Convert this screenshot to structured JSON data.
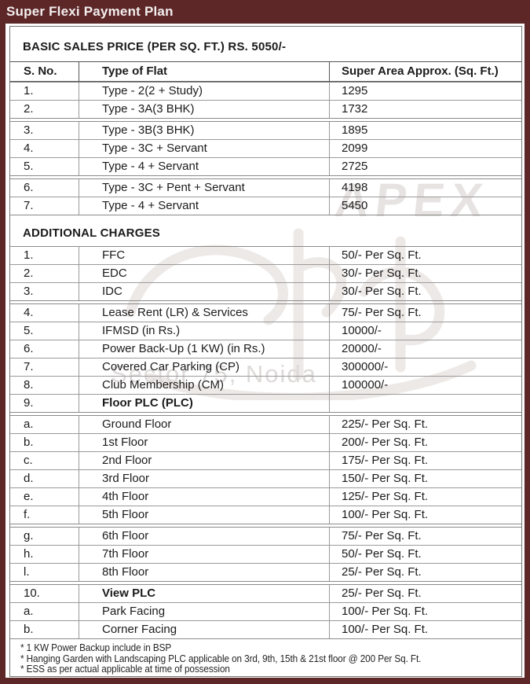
{
  "header": {
    "title": "Super Flexi Payment Plan"
  },
  "basic_sales_heading": "BASIC SALES PRICE (PER SQ. FT.) RS. 5050/-",
  "flats_table": {
    "headers": {
      "sno": "S. No.",
      "type": "Type of Flat",
      "area": "Super Area Approx. (Sq. Ft.)"
    },
    "groups": [
      [
        {
          "sno": "1.",
          "label": "Type - 2(2 + Study)",
          "value": "1295"
        },
        {
          "sno": "2.",
          "label": "Type - 3A(3 BHK)",
          "value": "1732"
        }
      ],
      [
        {
          "sno": "3.",
          "label": "Type - 3B(3 BHK)",
          "value": "1895"
        },
        {
          "sno": "4.",
          "label": "Type - 3C + Servant",
          "value": "2099"
        },
        {
          "sno": "5.",
          "label": "Type - 4 + Servant",
          "value": "2725"
        }
      ],
      [
        {
          "sno": "6.",
          "label": "Type - 3C + Pent + Servant",
          "value": "4198"
        },
        {
          "sno": "7.",
          "label": "Type - 4 + Servant",
          "value": "5450"
        }
      ]
    ]
  },
  "additional_charges": {
    "heading": "ADDITIONAL CHARGES",
    "groups": [
      [
        {
          "sno": "1.",
          "label": "FFC",
          "value": "50/- Per Sq. Ft."
        },
        {
          "sno": "2.",
          "label": "EDC",
          "value": "30/- Per Sq. Ft."
        },
        {
          "sno": "3.",
          "label": "IDC",
          "value": "30/- Per Sq. Ft."
        }
      ],
      [
        {
          "sno": "4.",
          "label": "Lease Rent (LR) & Services",
          "value": "75/- Per Sq. Ft."
        },
        {
          "sno": "5.",
          "label": "IFMSD (in Rs.)",
          "value": "10000/-"
        },
        {
          "sno": "6.",
          "label": "Power Back-Up (1 KW) (in Rs.)",
          "value": "20000/-"
        },
        {
          "sno": "7.",
          "label": "Covered Car Parking (CP)",
          "value": "300000/-"
        },
        {
          "sno": "8.",
          "label": "Club Membership (CM)",
          "value": "100000/-"
        },
        {
          "sno": "9.",
          "label": "Floor PLC (PLC)",
          "value": "",
          "bold": true
        }
      ],
      [
        {
          "sno": "a.",
          "label": "Ground Floor",
          "value": "225/- Per Sq. Ft."
        },
        {
          "sno": "b.",
          "label": "1st Floor",
          "value": "200/- Per Sq. Ft."
        },
        {
          "sno": "c.",
          "label": "2nd Floor",
          "value": "175/- Per Sq. Ft."
        },
        {
          "sno": "d.",
          "label": "3rd Floor",
          "value": "150/- Per Sq. Ft."
        },
        {
          "sno": "e.",
          "label": "4th Floor",
          "value": "125/- Per Sq. Ft."
        },
        {
          "sno": "f.",
          "label": "5th Floor",
          "value": "100/- Per Sq. Ft."
        }
      ],
      [
        {
          "sno": "g.",
          "label": "6th Floor",
          "value": "75/- Per Sq. Ft."
        },
        {
          "sno": "h.",
          "label": "7th Floor",
          "value": "50/- Per Sq. Ft."
        },
        {
          "sno": "l.",
          "label": "8th Floor",
          "value": "25/- Per Sq. Ft."
        }
      ],
      [
        {
          "sno": "10.",
          "label": "View PLC",
          "value": "25/- Per Sq. Ft.",
          "bold": true
        },
        {
          "sno": "a.",
          "label": "Park Facing",
          "value": "100/- Per Sq. Ft."
        },
        {
          "sno": "b.",
          "label": "Corner Facing",
          "value": "100/- Per Sq. Ft."
        }
      ]
    ]
  },
  "footnotes": [
    "* 1 KW Power Backup include in BSP",
    "* Hanging Garden with Landscaping PLC applicable on 3rd, 9th, 15th & 21st floor @ 200 Per Sq. Ft.",
    "* ESS as per actual applicable at time of possession"
  ],
  "watermark": {
    "brand": "APEX",
    "location": "Sector 75, Noida"
  },
  "colors": {
    "maroon": "#5d2728",
    "table_border": "#8a8a8a",
    "text": "#1b1b1b",
    "watermark_gray": "#e7e3e3"
  }
}
